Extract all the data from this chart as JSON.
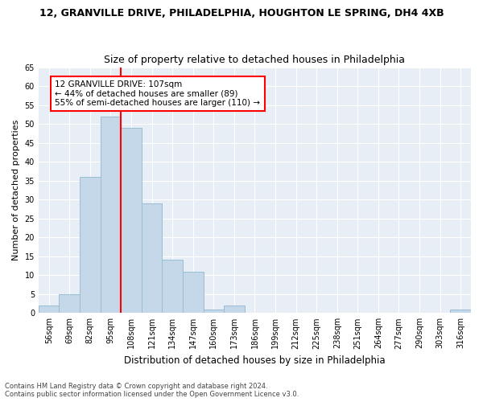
{
  "title": "12, GRANVILLE DRIVE, PHILADELPHIA, HOUGHTON LE SPRING, DH4 4XB",
  "subtitle": "Size of property relative to detached houses in Philadelphia",
  "xlabel": "Distribution of detached houses by size in Philadelphia",
  "ylabel": "Number of detached properties",
  "categories": [
    "56sqm",
    "69sqm",
    "82sqm",
    "95sqm",
    "108sqm",
    "121sqm",
    "134sqm",
    "147sqm",
    "160sqm",
    "173sqm",
    "186sqm",
    "199sqm",
    "212sqm",
    "225sqm",
    "238sqm",
    "251sqm",
    "264sqm",
    "277sqm",
    "290sqm",
    "303sqm",
    "316sqm"
  ],
  "values": [
    2,
    5,
    36,
    52,
    49,
    29,
    14,
    11,
    1,
    2,
    0,
    0,
    0,
    0,
    0,
    0,
    0,
    0,
    0,
    0,
    1
  ],
  "bar_color": "#c5d8ea",
  "bar_edge_color": "#9abdd4",
  "vline_x_index": 3.5,
  "marker_label": "12 GRANVILLE DRIVE: 107sqm",
  "pct_smaller": "44% of detached houses are smaller (89)",
  "pct_larger": "55% of semi-detached houses are larger (110)",
  "annotation_box_color": "white",
  "annotation_box_edge_color": "red",
  "vline_color": "red",
  "ylim": [
    0,
    65
  ],
  "yticks": [
    0,
    5,
    10,
    15,
    20,
    25,
    30,
    35,
    40,
    45,
    50,
    55,
    60,
    65
  ],
  "bg_color": "#e8eef5",
  "footer1": "Contains HM Land Registry data © Crown copyright and database right 2024.",
  "footer2": "Contains public sector information licensed under the Open Government Licence v3.0.",
  "title_fontsize": 9,
  "subtitle_fontsize": 9,
  "tick_fontsize": 7,
  "ylabel_fontsize": 8,
  "xlabel_fontsize": 8.5,
  "footer_fontsize": 6
}
